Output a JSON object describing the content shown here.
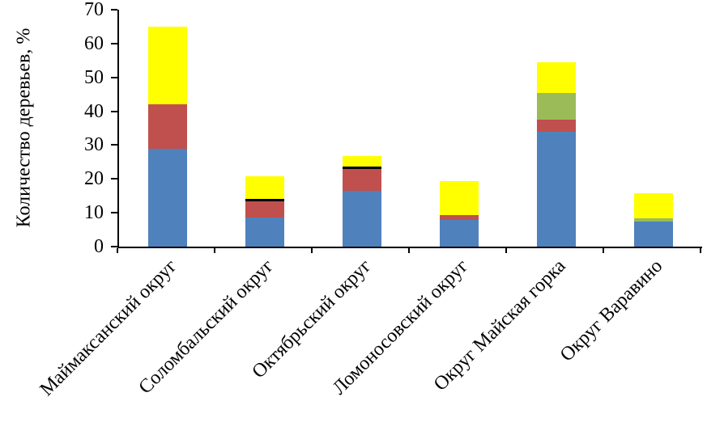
{
  "chart_data": {
    "type": "bar",
    "stacked": true,
    "title": "",
    "ylabel": "Количество деревьев, %",
    "xlabel": "",
    "ylim": [
      0,
      70
    ],
    "yticks": [
      0,
      10,
      20,
      30,
      40,
      50,
      60,
      70
    ],
    "grid": false,
    "legend": "none",
    "categories": [
      "Маймаксанский округ",
      "Соломбальский округ",
      "Октябрьский округ",
      "Ломоносовский округ",
      "Округ Майская горка",
      "Округ Варавино"
    ],
    "series": [
      {
        "name": "blue",
        "color": "#4F81BD",
        "values": [
          29,
          8.5,
          16.5,
          8,
          34,
          7.5
        ]
      },
      {
        "name": "red",
        "color": "#C0504D",
        "values": [
          13,
          5,
          6.5,
          1.3,
          3.5,
          0
        ]
      },
      {
        "name": "black",
        "color": "#000000",
        "values": [
          0,
          0.7,
          0.7,
          0,
          0,
          0
        ]
      },
      {
        "name": "green",
        "color": "#9BBB59",
        "values": [
          0,
          0,
          0,
          0,
          8,
          0.8
        ]
      },
      {
        "name": "yellow",
        "color": "#FFFF00",
        "values": [
          23,
          6.5,
          3,
          10,
          9,
          7.5
        ]
      }
    ]
  }
}
